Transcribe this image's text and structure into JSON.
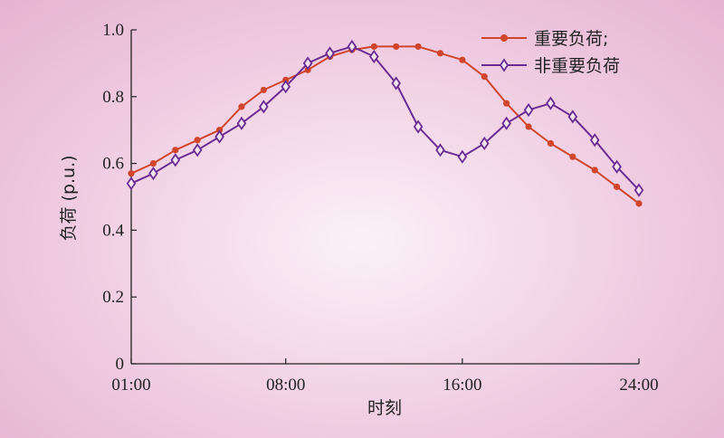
{
  "chart_data": {
    "type": "line",
    "xlabel": "时刻",
    "ylabel": "负荷 (p.u.)",
    "x": [
      1,
      2,
      3,
      4,
      5,
      6,
      7,
      8,
      9,
      10,
      11,
      12,
      13,
      14,
      15,
      16,
      17,
      18,
      19,
      20,
      21,
      22,
      23,
      24
    ],
    "xticks": [
      1,
      8,
      16,
      24
    ],
    "xtick_labels": [
      "01:00",
      "08:00",
      "16:00",
      "24:00"
    ],
    "xlim": [
      1,
      24
    ],
    "ylim": [
      0,
      1.0
    ],
    "yticks": [
      0,
      0.2,
      0.4,
      0.6,
      0.8,
      1.0
    ],
    "ytick_labels": [
      "0",
      "0.2",
      "0.4",
      "0.6",
      "0.8",
      "1.0"
    ],
    "grid": false,
    "legend_position": "top-right",
    "series": [
      {
        "name": "重要负荷;",
        "color": "#d0452b",
        "marker": "circle",
        "values": [
          0.57,
          0.6,
          0.64,
          0.67,
          0.7,
          0.77,
          0.82,
          0.85,
          0.88,
          0.92,
          0.94,
          0.95,
          0.95,
          0.95,
          0.93,
          0.91,
          0.86,
          0.78,
          0.71,
          0.66,
          0.62,
          0.58,
          0.53,
          0.48
        ]
      },
      {
        "name": "非重要负荷",
        "color": "#6a2c91",
        "marker": "diamond",
        "values": [
          0.54,
          0.57,
          0.61,
          0.64,
          0.68,
          0.72,
          0.77,
          0.83,
          0.9,
          0.93,
          0.95,
          0.92,
          0.84,
          0.71,
          0.64,
          0.62,
          0.66,
          0.72,
          0.76,
          0.78,
          0.74,
          0.67,
          0.59,
          0.52
        ]
      }
    ]
  }
}
